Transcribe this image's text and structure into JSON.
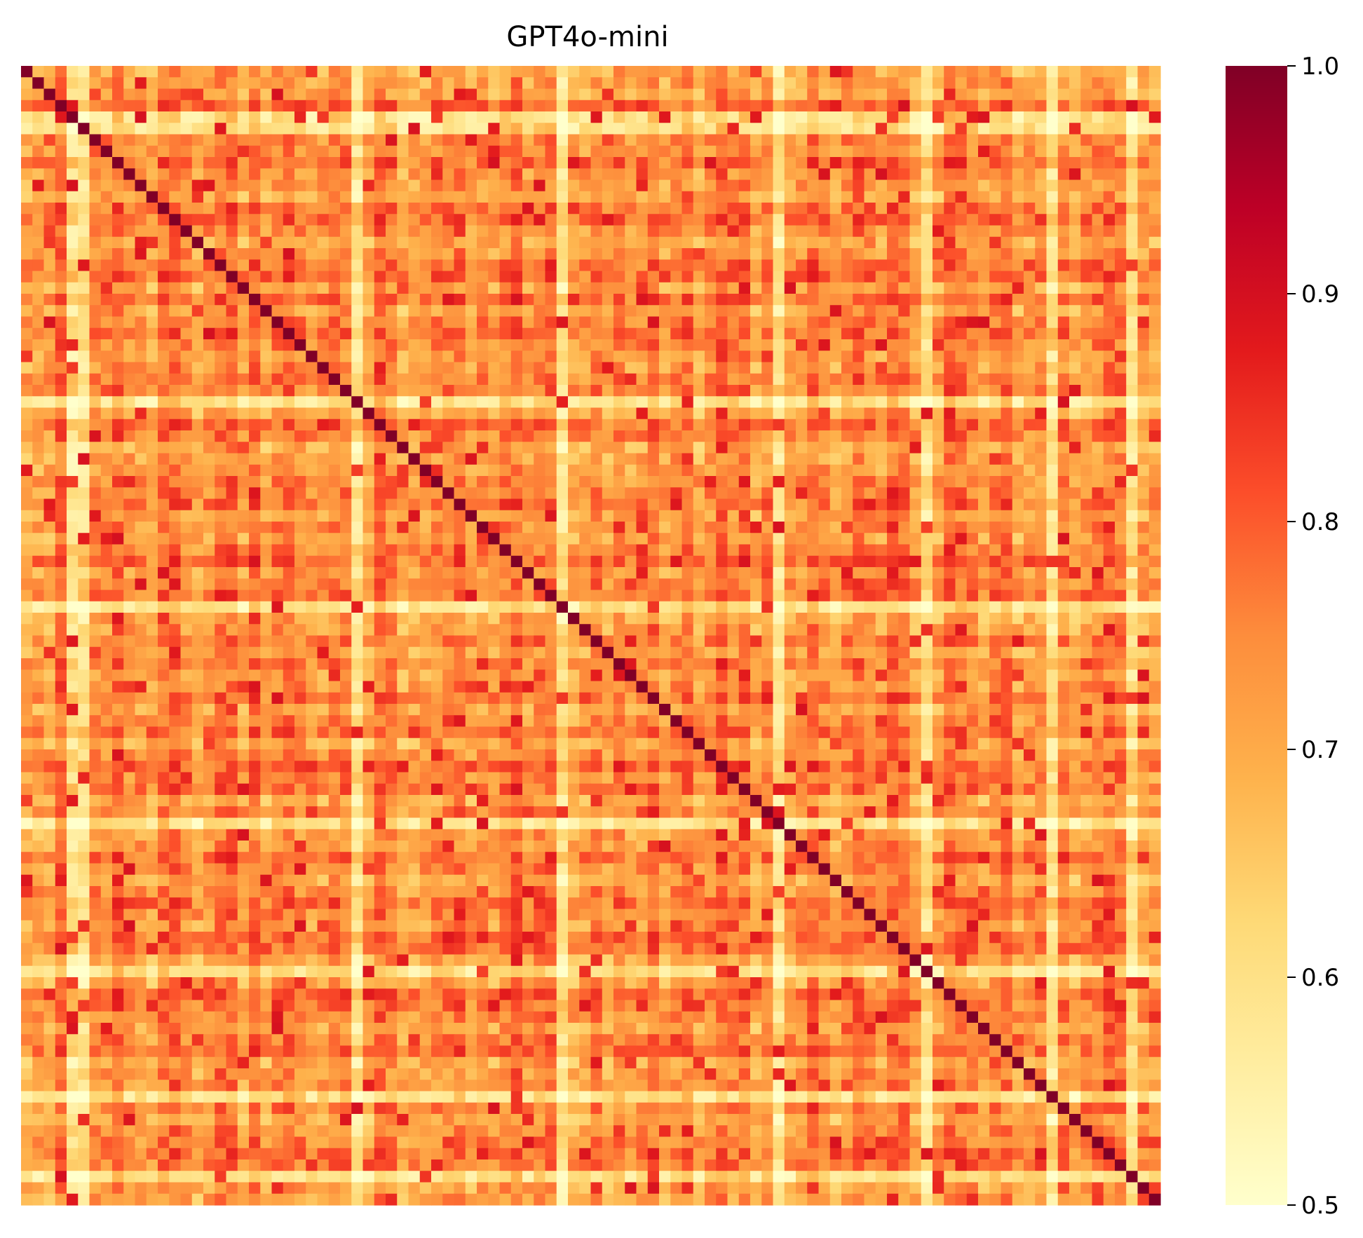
{
  "chart_data": {
    "type": "heatmap",
    "title": "GPT4o-mini",
    "xlabel": "",
    "ylabel": "",
    "n_rows": 100,
    "n_cols": 100,
    "diagonal_value": 1.0,
    "value_range": [
      0.5,
      1.0
    ],
    "colormap": "YlOrRd",
    "colorbar": {
      "ticks": [
        "1.0",
        "0.9",
        "0.8",
        "0.7",
        "0.6",
        "0.5"
      ],
      "tick_values": [
        1.0,
        0.9,
        0.8,
        0.7,
        0.6,
        0.5
      ],
      "placement": "right"
    },
    "light_rows_and_cols": [
      4,
      5,
      29,
      47,
      66,
      79,
      90,
      97
    ],
    "generation_seed": 20240417,
    "grid": false
  },
  "colors": {
    "cmap_stops": [
      "#ffffcc",
      "#ffeda0",
      "#fed976",
      "#feb24c",
      "#fd8d3c",
      "#fc4e2a",
      "#e31a1c",
      "#bd0026",
      "#800026"
    ],
    "background": "#ffffff"
  }
}
